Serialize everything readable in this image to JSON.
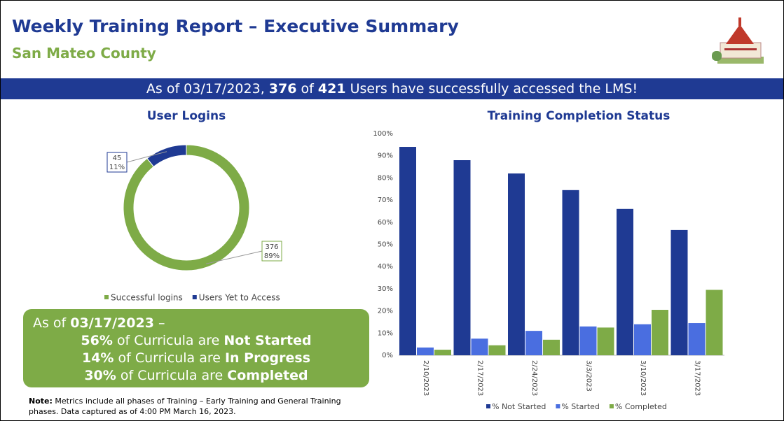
{
  "header": {
    "title": "Weekly Training Report – Executive Summary",
    "subtitle": "San Mateo County"
  },
  "banner": {
    "parts": [
      "As of 03/17/2023,",
      "376",
      "of",
      "421",
      "Users have successfully accessed the LMS!"
    ]
  },
  "chart_data": [
    {
      "type": "pie",
      "title": "User Logins",
      "categories": [
        "Successful logins",
        "Users Yet to Access"
      ],
      "values": [
        376,
        45
      ],
      "percent_labels": [
        "89%",
        "11%"
      ],
      "colors": [
        "#7eab47",
        "#1f3a93"
      ]
    },
    {
      "type": "bar",
      "title": "Training Completion Status",
      "categories": [
        "2/10/2023",
        "2/17/2023",
        "2/24/2023",
        "3/3/2023",
        "3/10/2023",
        "3/17/2023"
      ],
      "series": [
        {
          "name": "% Not Started",
          "color": "#1f3a93",
          "values": [
            94,
            88,
            82,
            74.5,
            66,
            56.5
          ]
        },
        {
          "name": "% Started",
          "color": "#4a6ee0",
          "values": [
            3.5,
            7.5,
            11,
            13,
            14,
            14.5
          ]
        },
        {
          "name": "% Completed",
          "color": "#7eab47",
          "values": [
            2.5,
            4.5,
            7,
            12.5,
            20.5,
            29.5
          ]
        }
      ],
      "ylim": [
        0,
        100
      ],
      "yticks": [
        {
          "value": 0,
          "label": "0%"
        },
        {
          "value": 10,
          "label": "10%"
        },
        {
          "value": 20,
          "label": "20%"
        },
        {
          "value": 30,
          "label": "30%"
        },
        {
          "value": 40,
          "label": "40%"
        },
        {
          "value": 50,
          "label": "50%"
        },
        {
          "value": 60,
          "label": "60%"
        },
        {
          "value": 70,
          "label": "70%"
        },
        {
          "value": 80,
          "label": "80%"
        },
        {
          "value": 90,
          "label": "90%"
        },
        {
          "value": 100,
          "label": "100%"
        }
      ],
      "grid": false
    }
  ],
  "summary": {
    "intro": [
      "As of",
      "03/17/2023",
      "–"
    ],
    "lines": [
      [
        "56%",
        "of Curricula are",
        "Not Started"
      ],
      [
        "14%",
        "of Curricula are",
        "In Progress"
      ],
      [
        "30%",
        "of Curricula are",
        "Completed"
      ]
    ]
  },
  "note": {
    "label": "Note:",
    "text": "Metrics include all phases of Training – Early Training and General Training phases. Data captured as of 4:00 PM March 16, 2023."
  }
}
